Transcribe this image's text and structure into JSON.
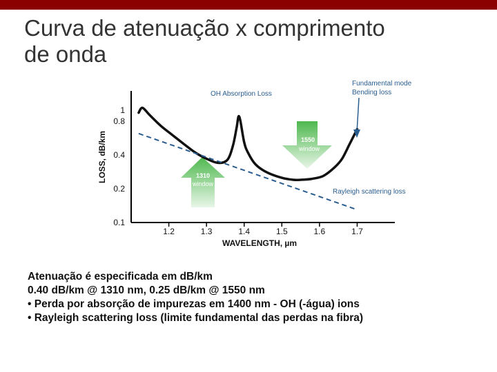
{
  "slide": {
    "title_line1": "Curva de atenuação x comprimento",
    "title_line2": "de onda",
    "notes": [
      "Atenuação é especificada em dB/km",
      "0.40 dB/km @ 1310 nm, 0.25 dB/km @ 1550 nm",
      "• Perda por absorção de impurezas em 1400 nm - OH (-água) ions",
      "• Rayleigh scattering loss (limite fundamental das perdas na fibra)"
    ]
  },
  "colors": {
    "top_bar": "#8b0000",
    "curve": "#111111",
    "rayleigh_line": "#2a5d8f",
    "window_arrow": "#7ecf7e"
  },
  "chart_data": {
    "type": "line",
    "xlabel": "WAVELENGTH, µm",
    "ylabel": "LOSS, dB/km",
    "x_ticks": [
      "1.2",
      "1.3",
      "1.4",
      "1.5",
      "1.6",
      "1.7"
    ],
    "y_ticks": [
      "0.1",
      "0.2",
      "0.4",
      "0.8",
      "1"
    ],
    "xlim": [
      1.1,
      1.8
    ],
    "y_scale": "log",
    "ylim": [
      0.1,
      1.3
    ],
    "series": [
      {
        "role": "attenuation",
        "x": [
          1.12,
          1.13,
          1.15,
          1.18,
          1.21,
          1.24,
          1.27,
          1.3,
          1.33,
          1.355,
          1.37,
          1.38,
          1.385,
          1.39,
          1.4,
          1.41,
          1.43,
          1.46,
          1.5,
          1.53,
          1.55,
          1.58,
          1.61,
          1.64,
          1.66,
          1.68,
          1.7
        ],
        "y": [
          0.95,
          1.05,
          0.9,
          0.72,
          0.6,
          0.5,
          0.42,
          0.37,
          0.34,
          0.36,
          0.48,
          0.7,
          0.88,
          0.8,
          0.52,
          0.42,
          0.33,
          0.28,
          0.25,
          0.24,
          0.24,
          0.245,
          0.26,
          0.31,
          0.37,
          0.5,
          0.68
        ]
      },
      {
        "role": "rayleigh",
        "x": [
          1.12,
          1.7
        ],
        "y": [
          0.62,
          0.13
        ]
      }
    ],
    "annotations": {
      "oh_absorption": "OH Absorption Loss",
      "bending_line1": "Fundamental mode",
      "bending_line2": "Bending loss",
      "rayleigh": "Rayleigh scattering loss",
      "window_1550_line1": "1550",
      "window_1550_line2": "window",
      "window_1310_line1": "1310",
      "window_1310_line2": "window"
    },
    "grid": false
  }
}
